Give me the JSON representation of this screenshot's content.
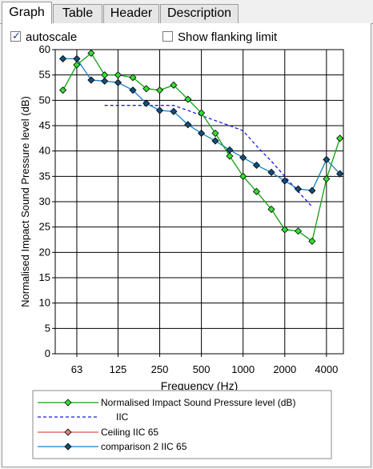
{
  "tabs": [
    {
      "label": "Graph",
      "active": true
    },
    {
      "label": "Table",
      "active": false
    },
    {
      "label": "Header",
      "active": false
    },
    {
      "label": "Description",
      "active": false
    }
  ],
  "options": {
    "autoscale": {
      "label": "autoscale",
      "checked": true
    },
    "flanking": {
      "label": "Show flanking limit",
      "checked": false
    }
  },
  "chart_data": {
    "type": "line",
    "xlabel": "Frequency (Hz)",
    "ylabel": "Normalised Impact Sound Pressure level (dB)",
    "ylim": [
      0,
      60
    ],
    "yticks": [
      0,
      5,
      10,
      15,
      20,
      25,
      30,
      35,
      40,
      45,
      50,
      55,
      60
    ],
    "x_scale": "log",
    "xticks": [
      63,
      125,
      250,
      500,
      1000,
      2000,
      4000
    ],
    "grid": true,
    "legend_position": "bottom",
    "series": [
      {
        "name": "Normalised Impact Sound Pressure level (dB)",
        "color": "#10a010",
        "marker_color": "#33e033",
        "style": "solid",
        "marker": "diamond",
        "x": [
          50,
          63,
          80,
          100,
          125,
          160,
          200,
          250,
          315,
          400,
          500,
          630,
          800,
          1000,
          1250,
          1600,
          2000,
          2500,
          3150,
          4000,
          5000
        ],
        "y": [
          52,
          57,
          59.3,
          55,
          55,
          54.5,
          52.3,
          52,
          53,
          50.2,
          47.5,
          43.5,
          39,
          35,
          32,
          28.5,
          24.5,
          24.2,
          22.2,
          34.5,
          42.5
        ]
      },
      {
        "name": "IIC",
        "color": "#1a1ae0",
        "style": "dashed",
        "marker": "none",
        "x": [
          100,
          125,
          160,
          200,
          250,
          315,
          400,
          500,
          630,
          800,
          1000,
          1250,
          1600,
          2000,
          2500,
          3150
        ],
        "y": [
          49,
          49,
          49,
          49,
          49,
          49,
          48,
          47,
          46,
          45,
          44,
          41,
          38,
          35,
          32,
          29
        ]
      },
      {
        "name": "Ceiling IIC 65",
        "color": "#e05050",
        "marker_color": "#e08080",
        "style": "solid",
        "marker": "diamond",
        "x": [],
        "y": []
      },
      {
        "name": "comparison 2 IIC 65",
        "color": "#1a7fbf",
        "marker_color": "#10507a",
        "style": "solid",
        "marker": "diamond",
        "x": [
          50,
          63,
          80,
          100,
          125,
          160,
          200,
          250,
          315,
          400,
          500,
          630,
          800,
          1000,
          1250,
          1600,
          2000,
          2500,
          3150,
          4000,
          5000
        ],
        "y": [
          58.2,
          58.2,
          54,
          53.8,
          53.5,
          52,
          49.4,
          48,
          47.8,
          45.2,
          43.5,
          42,
          40.2,
          38.7,
          37.2,
          35.8,
          34.1,
          32.5,
          32.2,
          38.3,
          35.5
        ]
      }
    ]
  }
}
